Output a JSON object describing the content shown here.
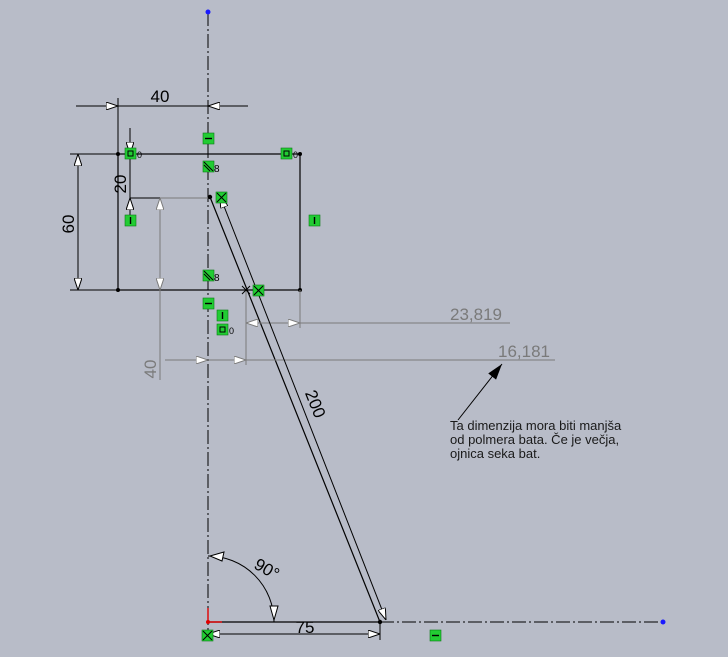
{
  "colors": {
    "background": "#b8bcc8",
    "geometry": "#000000",
    "driven_dimension": "#7a7a7a",
    "relation_marker": "#22cc33",
    "endpoint_blue": "#1a1aff",
    "origin_red": "#e00000"
  },
  "dimensions": {
    "piston_width": "40",
    "top_offset": "20",
    "piston_height": "60",
    "rod_length": "200",
    "crank_radius": "75",
    "crank_angle": "90°",
    "lower_offset": "40"
  },
  "driven_dimensions": {
    "first": "23,819",
    "second": "16,181"
  },
  "note": {
    "lines": [
      "Ta dimenzija mora biti manjša",
      "od polmera bata. Če je večja,",
      "ojnica seka bat."
    ]
  },
  "relation_labels": {
    "symmetric_top": "8",
    "symmetric_bottom": "8",
    "corner_left": "0",
    "corner_right": "0",
    "below": "0"
  },
  "icons": [
    "horizontal-relation-icon",
    "vertical-relation-icon",
    "symmetric-relation-icon",
    "coincident-relation-icon",
    "fixed-relation-icon",
    "arrow-icon"
  ]
}
